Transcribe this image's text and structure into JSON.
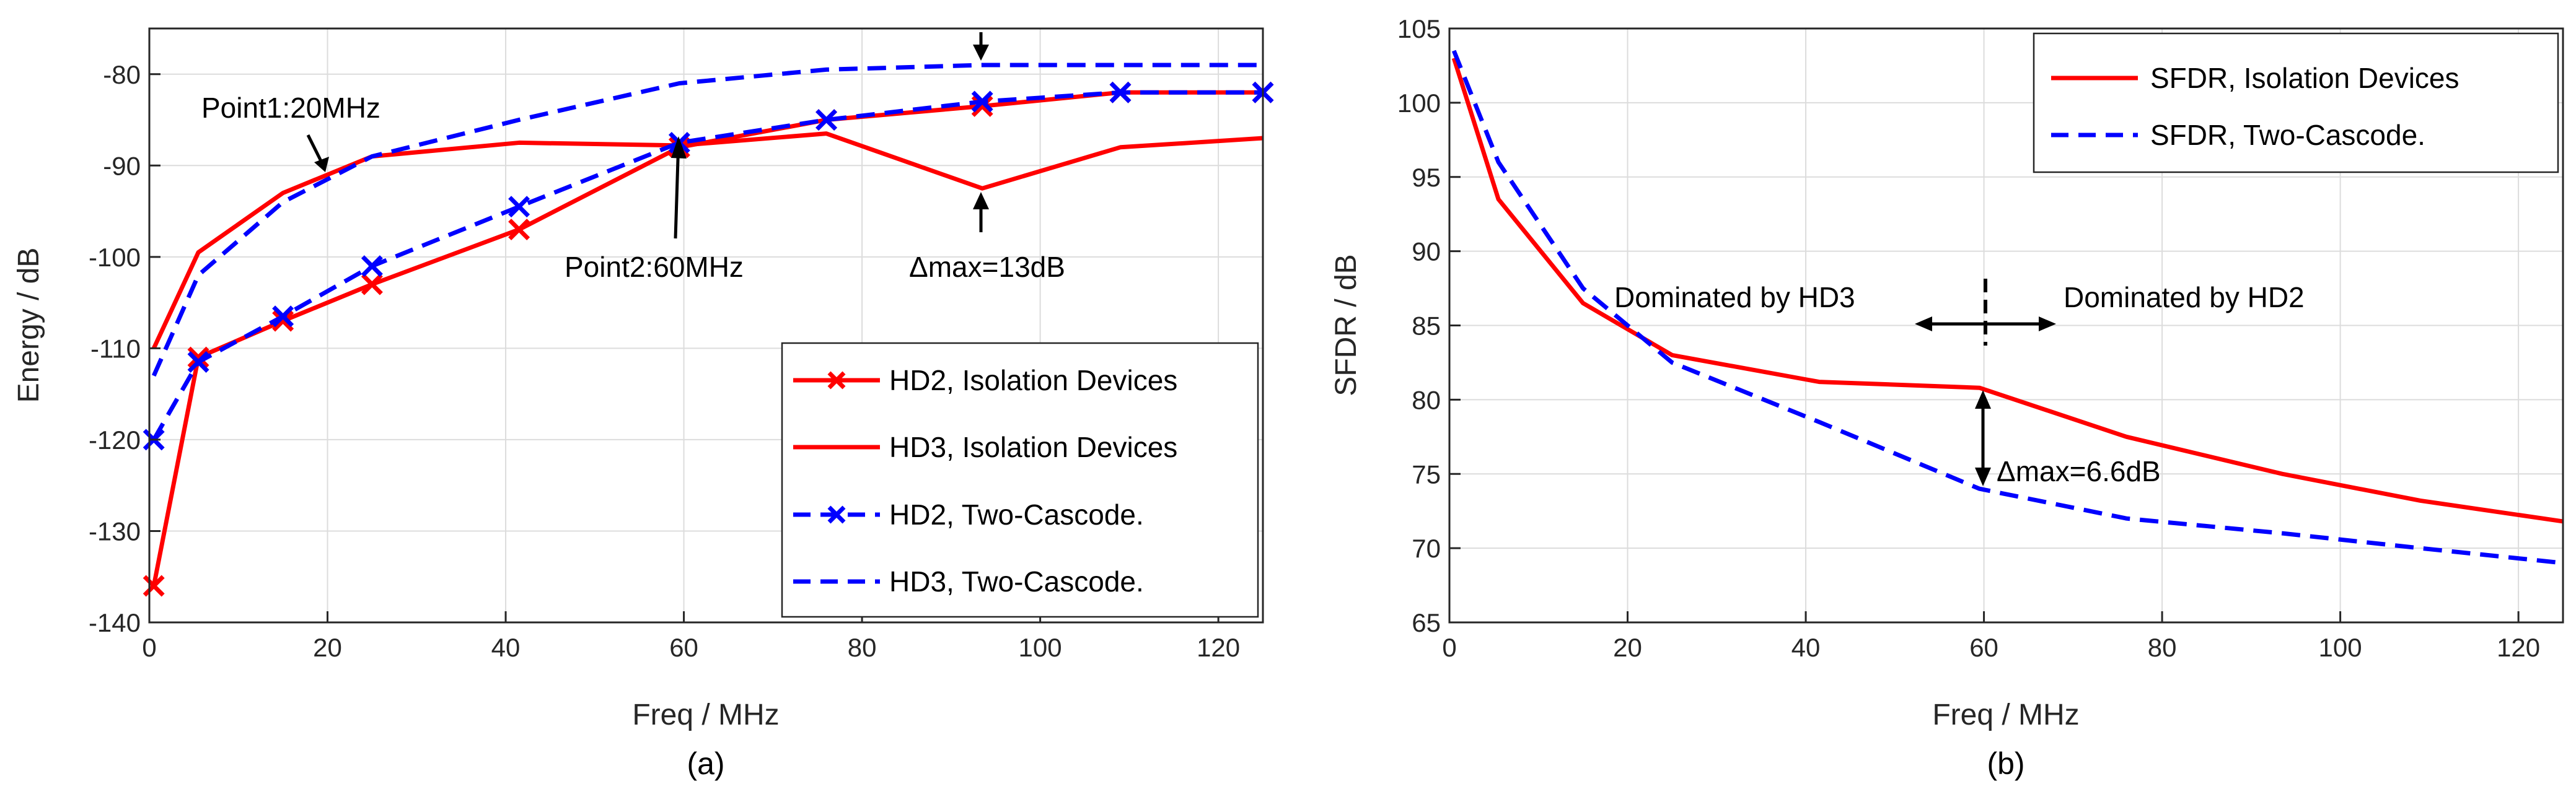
{
  "chart_data": [
    {
      "type": "line",
      "xlabel": "Freq / MHz",
      "ylabel": "Energy / dB",
      "caption": "(a)",
      "xlim": [
        0,
        125
      ],
      "ylim": [
        -140,
        -75
      ],
      "xticks": [
        0,
        20,
        40,
        60,
        80,
        100,
        120
      ],
      "yticks": [
        -140,
        -130,
        -120,
        -110,
        -100,
        -90,
        -80
      ],
      "grid": true,
      "legend_position": "bottom-right",
      "series": [
        {
          "name": "HD2, Isolation Devices",
          "color": "#ff0000",
          "dash": "solid",
          "marker": "x",
          "x": [
            0.5,
            5.5,
            15,
            25,
            41.5,
            59.5,
            76,
            93.5,
            109,
            125
          ],
          "y": [
            -136,
            -111,
            -107,
            -103,
            -97,
            -88,
            -85,
            -83.5,
            -82,
            -82
          ]
        },
        {
          "name": "HD3, Isolation Devices",
          "color": "#ff0000",
          "dash": "solid",
          "marker": "none",
          "x": [
            0.5,
            5.5,
            15,
            25,
            41.5,
            59.5,
            76,
            93.5,
            109,
            125
          ],
          "y": [
            -110,
            -99.5,
            -93,
            -89,
            -87.5,
            -87.8,
            -86.5,
            -92.5,
            -88,
            -87
          ]
        },
        {
          "name": "HD2, Two-Cascode.",
          "color": "#0000ff",
          "dash": "dashed",
          "marker": "x",
          "x": [
            0.5,
            5.5,
            15,
            25,
            41.5,
            59.5,
            76,
            93.5,
            109,
            125
          ],
          "y": [
            -120,
            -111.5,
            -106.5,
            -101,
            -94.5,
            -87.5,
            -85,
            -83,
            -82,
            -82
          ]
        },
        {
          "name": "HD3, Two-Cascode.",
          "color": "#0000ff",
          "dash": "dashed",
          "marker": "none",
          "x": [
            0.5,
            5.5,
            15,
            25,
            41.5,
            59.5,
            76,
            93.5,
            109,
            125
          ],
          "y": [
            -113,
            -102,
            -94,
            -89,
            -85,
            -81,
            -79.5,
            -79,
            -79,
            -79
          ]
        }
      ],
      "annotations": [
        {
          "text": "Point1:20MHz"
        },
        {
          "text": "Point2:60MHz"
        },
        {
          "text": "Δmax=13dB"
        }
      ]
    },
    {
      "type": "line",
      "xlabel": "Freq / MHz",
      "ylabel": "SFDR / dB",
      "caption": "(b)",
      "xlim": [
        0,
        125
      ],
      "ylim": [
        65,
        105
      ],
      "xticks": [
        0,
        20,
        40,
        60,
        80,
        100,
        120
      ],
      "yticks": [
        65,
        70,
        75,
        80,
        85,
        90,
        95,
        100,
        105
      ],
      "grid": true,
      "legend_position": "top-right",
      "series": [
        {
          "name": "SFDR, Isolation Devices",
          "color": "#ff0000",
          "dash": "solid",
          "marker": "none",
          "x": [
            0.5,
            5.5,
            15,
            25,
            41.5,
            59.5,
            76,
            93.5,
            109,
            125
          ],
          "y": [
            103,
            93.5,
            86.5,
            83,
            81.2,
            80.8,
            77.5,
            75,
            73.2,
            71.8
          ]
        },
        {
          "name": "SFDR, Two-Cascode.",
          "color": "#0000ff",
          "dash": "dashed",
          "marker": "none",
          "x": [
            0.5,
            5.5,
            15,
            25,
            41.5,
            59.5,
            76,
            93.5,
            109,
            125
          ],
          "y": [
            103.5,
            96,
            87.5,
            82.5,
            78.5,
            74,
            72,
            71,
            70,
            69
          ]
        }
      ],
      "annotations": [
        {
          "text": "Dominated by HD3"
        },
        {
          "text": "Dominated by HD2"
        },
        {
          "text": "Δmax=6.6dB"
        }
      ]
    }
  ]
}
